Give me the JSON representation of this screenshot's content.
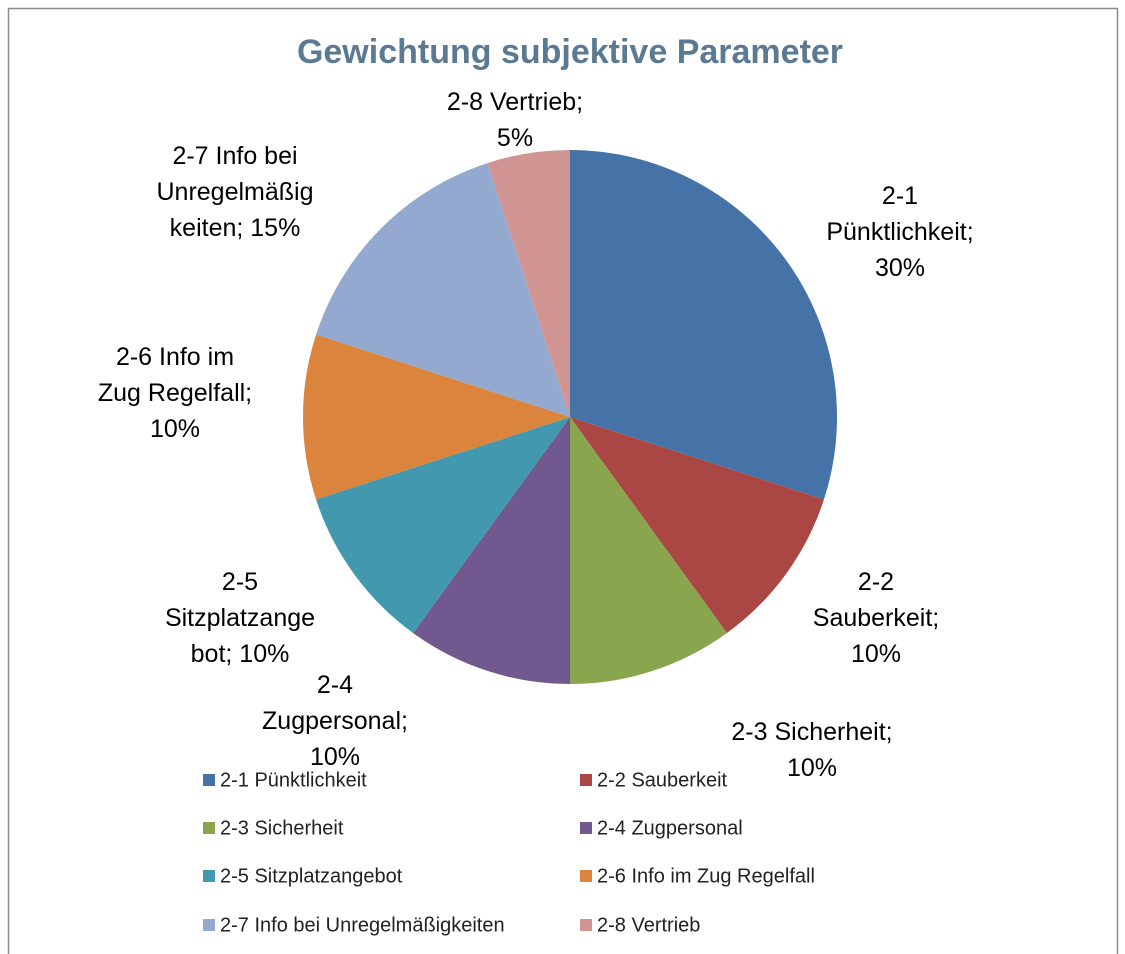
{
  "chart_data": {
    "type": "pie",
    "title": "Gewichtung subjektive Parameter",
    "categories": [
      "2-1 Pünktlichkeit",
      "2-2 Sauberkeit",
      "2-3 Sicherheit",
      "2-4 Zugpersonal",
      "2-5 Sitzplatzangebot",
      "2-6 Info im Zug Regelfall",
      "2-7 Info bei Unregelmäßigkeiten",
      "2-8 Vertrieb"
    ],
    "values": [
      30,
      10,
      10,
      10,
      10,
      10,
      15,
      5
    ],
    "value_labels": [
      "2-1\nPünktlichkeit;\n30%",
      "2-2\nSauberkeit;\n10%",
      "2-3 Sicherheit;\n10%",
      "2-4\nZugpersonal;\n10%",
      "2-5\nSitzplatzange\nbot; 10%",
      "2-6 Info im\nZug Regelfall;\n10%",
      "2-7 Info bei\nUnregelmäßig\nkeiten; 15%",
      "2-8 Vertrieb;\n5%"
    ],
    "colors": [
      "#4572a7",
      "#aa4643",
      "#89a54e",
      "#71588f",
      "#4198af",
      "#db843d",
      "#93a9cf",
      "#d09493"
    ],
    "legend": "bottom"
  }
}
